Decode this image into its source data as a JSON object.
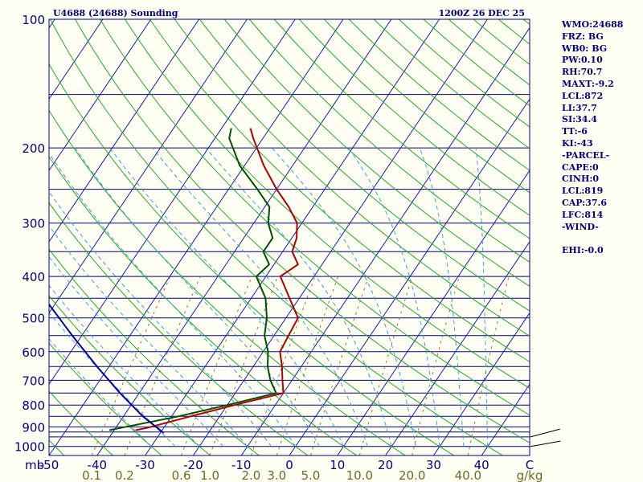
{
  "header": {
    "left": "U4688 (24688) Sounding",
    "right": "1200Z 26 DEC 25"
  },
  "indices": [
    "WMO:24688",
    "FRZ: BG",
    "WB0: BG",
    "PW:0.10",
    "RH:70.7",
    "MAXT:-9.2",
    "LCL:872",
    "LI:37.7",
    "SI:34.4",
    "TT:-6",
    "KI:-43",
    "-PARCEL-",
    "CAPE:0",
    "CINH:0",
    "LCL:819",
    "CAP:37.6",
    "LFC:814",
    "-WIND-",
    "",
    "EHI:-0.0"
  ],
  "colors": {
    "background": "#fffff4",
    "frame": "#000080",
    "isobar": "#000080",
    "isotherm": "#1a1aaa",
    "dry_adiabat": "#22aa22",
    "moist_adiabat": "#3aa0dd",
    "mixing_ratio": "#8a7a3a",
    "temperature": "#b00000",
    "dewpoint": "#005000",
    "parcel": "#0000a0",
    "wind": "#000000"
  },
  "chart_data": {
    "type": "line",
    "subtype": "skew-T log-P sounding",
    "y_axis": {
      "unit_label": "mb",
      "scale": "log",
      "ylim": [
        1050,
        100
      ],
      "ticks": [
        100,
        200,
        300,
        400,
        500,
        600,
        700,
        800,
        900,
        1000
      ]
    },
    "x_axis": {
      "unit_label": "C",
      "xlim": [
        -50,
        50
      ],
      "ticks": [
        -50,
        -40,
        -30,
        -20,
        -10,
        0,
        10,
        20,
        30,
        40
      ]
    },
    "mixing_ratio_axis": {
      "unit_label": "g/kg",
      "ticks": [
        0.1,
        0.2,
        0.6,
        1.0,
        2.0,
        3.0,
        5.0,
        10.0,
        20.0,
        40.0
      ],
      "tick_labels": [
        "0.1",
        "0.2",
        "0.6",
        "1.0",
        "2.0",
        "3.0",
        "5.0",
        "10.0",
        "20.0",
        "40.0"
      ]
    },
    "isobars": [
      100,
      150,
      200,
      250,
      300,
      350,
      400,
      450,
      500,
      550,
      600,
      650,
      700,
      750,
      800,
      850,
      900,
      925,
      950,
      1000
    ],
    "series": [
      {
        "key": "temperature",
        "points": [
          [
            916,
            -35.5
          ],
          [
            905,
            -33.5
          ],
          [
            850,
            -26.0
          ],
          [
            800,
            -18.5
          ],
          [
            750,
            -10.0
          ],
          [
            700,
            -12.0
          ],
          [
            650,
            -14.0
          ],
          [
            600,
            -16.5
          ],
          [
            550,
            -17.0
          ],
          [
            500,
            -17.5
          ],
          [
            450,
            -22.0
          ],
          [
            400,
            -27.0
          ],
          [
            375,
            -25.0
          ],
          [
            350,
            -28.0
          ],
          [
            325,
            -29.0
          ],
          [
            300,
            -31.0
          ],
          [
            275,
            -35.0
          ],
          [
            250,
            -40.0
          ],
          [
            220,
            -46.0
          ],
          [
            190,
            -52.0
          ],
          [
            180,
            -54.0
          ]
        ]
      },
      {
        "key": "dewpoint",
        "points": [
          [
            916,
            -41.0
          ],
          [
            905,
            -39.0
          ],
          [
            850,
            -28.5
          ],
          [
            800,
            -20.0
          ],
          [
            750,
            -11.5
          ],
          [
            700,
            -14.5
          ],
          [
            650,
            -17.0
          ],
          [
            600,
            -19.0
          ],
          [
            550,
            -22.0
          ],
          [
            500,
            -24.0
          ],
          [
            450,
            -27.0
          ],
          [
            400,
            -32.0
          ],
          [
            375,
            -31.0
          ],
          [
            350,
            -34.0
          ],
          [
            325,
            -34.0
          ],
          [
            300,
            -37.0
          ],
          [
            275,
            -39.0
          ],
          [
            250,
            -44.0
          ],
          [
            220,
            -51.0
          ],
          [
            190,
            -57.0
          ],
          [
            180,
            -58.0
          ]
        ]
      },
      {
        "key": "parcel",
        "points": [
          [
            930,
            -29.3
          ],
          [
            850,
            -36.0
          ],
          [
            750,
            -44.0
          ],
          [
            650,
            -52.5
          ],
          [
            550,
            -62.0
          ],
          [
            450,
            -73.0
          ],
          [
            350,
            -85.0
          ],
          [
            300,
            -92.0
          ]
        ]
      }
    ],
    "wind_barbs": [
      {
        "p": 950,
        "dir_deg": 255,
        "speed_kt": 5
      },
      {
        "p": 1000,
        "dir_deg": 260,
        "speed_kt": 5
      }
    ]
  }
}
